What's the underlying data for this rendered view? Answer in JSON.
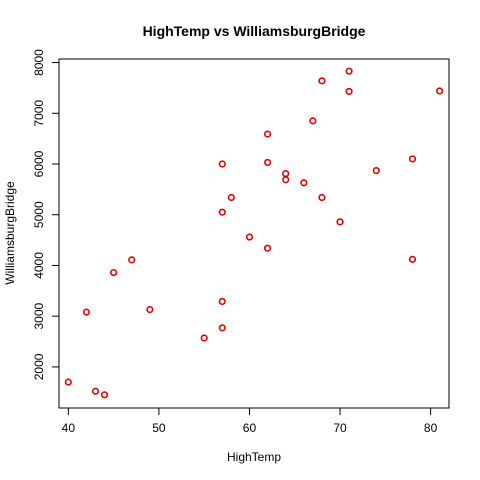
{
  "chart_data": {
    "type": "scatter",
    "title": "HighTemp vs WilliamsburgBridge",
    "xlabel": "HighTemp",
    "ylabel": "WilliamsburgBridge",
    "xlim": [
      38.97,
      82.03
    ],
    "ylim": [
      1190,
      8070
    ],
    "x_ticks": [
      40,
      50,
      60,
      70,
      80
    ],
    "y_ticks": [
      2000,
      3000,
      4000,
      5000,
      6000,
      7000,
      8000
    ],
    "x_tick_labels": [
      "40",
      "50",
      "60",
      "70",
      "80"
    ],
    "y_tick_labels": [
      "2000",
      "3000",
      "4000",
      "5000",
      "6000",
      "7000",
      "8000"
    ],
    "point_color": "#dd0000",
    "grid": false,
    "points": [
      {
        "x": 40,
        "y": 1700
      },
      {
        "x": 42,
        "y": 3080
      },
      {
        "x": 43,
        "y": 1520
      },
      {
        "x": 44,
        "y": 1450
      },
      {
        "x": 45,
        "y": 3860
      },
      {
        "x": 47,
        "y": 4110
      },
      {
        "x": 49,
        "y": 3130
      },
      {
        "x": 55,
        "y": 2570
      },
      {
        "x": 57,
        "y": 2770
      },
      {
        "x": 57,
        "y": 3290
      },
      {
        "x": 57,
        "y": 5050
      },
      {
        "x": 57,
        "y": 6000
      },
      {
        "x": 58,
        "y": 5340
      },
      {
        "x": 60,
        "y": 4560
      },
      {
        "x": 62,
        "y": 4340
      },
      {
        "x": 62,
        "y": 6030
      },
      {
        "x": 62,
        "y": 6590
      },
      {
        "x": 64,
        "y": 5810
      },
      {
        "x": 64,
        "y": 5690
      },
      {
        "x": 66,
        "y": 5630
      },
      {
        "x": 67,
        "y": 6850
      },
      {
        "x": 68,
        "y": 7640
      },
      {
        "x": 68,
        "y": 5340
      },
      {
        "x": 70,
        "y": 4860
      },
      {
        "x": 71,
        "y": 7830
      },
      {
        "x": 71,
        "y": 7430
      },
      {
        "x": 74,
        "y": 5870
      },
      {
        "x": 78,
        "y": 6100
      },
      {
        "x": 78,
        "y": 4120
      },
      {
        "x": 81,
        "y": 7440
      }
    ]
  }
}
